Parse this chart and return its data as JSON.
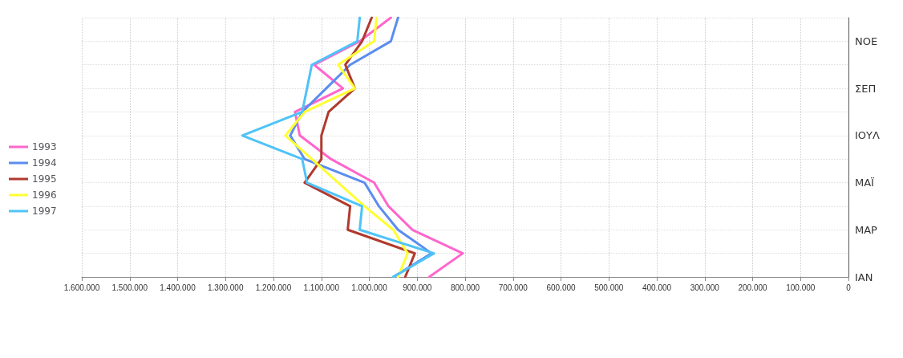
{
  "chart_data": {
    "type": "line",
    "orientation": "horizontal",
    "categories": [
      null,
      "ΝΟΕ",
      null,
      "ΣΕΠ",
      null,
      "ΙΟΥΛ",
      null,
      "ΜΑΪ",
      null,
      "ΜΑΡ",
      null,
      "ΙΑΝ"
    ],
    "series": [
      {
        "name": "1993",
        "color": "#ff66cc",
        "values": [
          955000,
          1020000,
          1115000,
          1055000,
          1155000,
          1145000,
          1080000,
          990000,
          960000,
          910000,
          805000,
          875000
        ]
      },
      {
        "name": "1994",
        "color": "#5b8def",
        "values": [
          940000,
          955000,
          1040000,
          1090000,
          1140000,
          1165000,
          1135000,
          1010000,
          980000,
          940000,
          870000,
          950000
        ]
      },
      {
        "name": "1995",
        "color": "#b03a2e",
        "values": [
          995000,
          1015000,
          1050000,
          1030000,
          1085000,
          1100000,
          1100000,
          1135000,
          1040000,
          1045000,
          905000,
          925000
        ]
      },
      {
        "name": "1996",
        "color": "#ffff33",
        "values": [
          985000,
          990000,
          1065000,
          1030000,
          1135000,
          1175000,
          1120000,
          1065000,
          1010000,
          950000,
          920000,
          940000
        ]
      },
      {
        "name": "1997",
        "color": "#4fc3f7",
        "values": [
          1020000,
          1025000,
          1120000,
          1130000,
          1140000,
          1265000,
          1140000,
          1130000,
          1015000,
          1020000,
          865000,
          950000
        ]
      }
    ],
    "xlim": [
      1600000,
      0
    ],
    "xticks": [
      {
        "value": 0,
        "label": "0"
      },
      {
        "value": 100000,
        "label": "100.000"
      },
      {
        "value": 200000,
        "label": "200.000"
      },
      {
        "value": 300000,
        "label": "300.000"
      },
      {
        "value": 400000,
        "label": "400.000"
      },
      {
        "value": 500000,
        "label": "500.000"
      },
      {
        "value": 600000,
        "label": "600.000"
      },
      {
        "value": 700000,
        "label": "700.000"
      },
      {
        "value": 800000,
        "label": "800.000"
      },
      {
        "value": 900000,
        "label": "900.000"
      },
      {
        "value": 1000000,
        "label": "1.000.000"
      },
      {
        "value": 1100000,
        "label": "1.100.000"
      },
      {
        "value": 1200000,
        "label": "1.200.000"
      },
      {
        "value": 1300000,
        "label": "1.300.000"
      },
      {
        "value": 1400000,
        "label": "1.400.000"
      },
      {
        "value": 1500000,
        "label": "1.500.000"
      },
      {
        "value": 1600000,
        "label": "1.600.000"
      }
    ],
    "grid": true,
    "legend": "left",
    "marker": "none",
    "line_style": "solid"
  }
}
